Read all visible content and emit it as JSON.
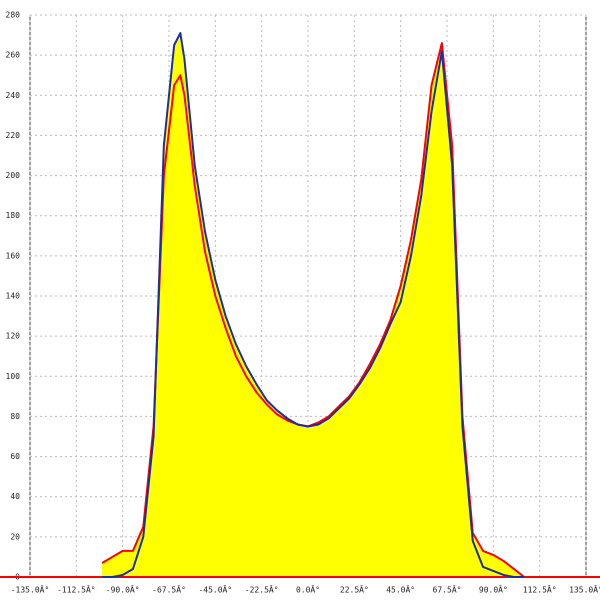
{
  "chart_data": {
    "type": "area",
    "x": [
      -100,
      -95,
      -90,
      -85,
      -80,
      -75,
      -70,
      -65,
      -62,
      -60,
      -55,
      -50,
      -45,
      -40,
      -35,
      -30,
      -25,
      -20,
      -15,
      -10,
      -5,
      0,
      5,
      10,
      15,
      20,
      25,
      30,
      35,
      40,
      45,
      50,
      55,
      60,
      65,
      70,
      75,
      80,
      85,
      90,
      95,
      100,
      105
    ],
    "series": [
      {
        "color": "#ff0000",
        "values": [
          7,
          10,
          13,
          13,
          25,
          75,
          200,
          245,
          250,
          240,
          195,
          162,
          140,
          124,
          110,
          100,
          92,
          86,
          81,
          78,
          76,
          75,
          77,
          80,
          85,
          90,
          97,
          106,
          116,
          128,
          145,
          168,
          198,
          245,
          266,
          215,
          80,
          22,
          13,
          11,
          8,
          4,
          0
        ]
      },
      {
        "color": "#1a2fa0",
        "values": [
          0,
          0,
          1,
          4,
          20,
          70,
          215,
          265,
          271,
          258,
          205,
          172,
          148,
          130,
          116,
          105,
          96,
          88,
          83,
          79,
          76,
          75,
          76,
          79,
          84,
          89,
          96,
          104,
          114,
          126,
          137,
          160,
          190,
          232,
          262,
          205,
          75,
          18,
          5,
          3,
          1,
          0,
          0
        ]
      }
    ],
    "fill": "#ffff00",
    "xlim": [
      -135,
      135
    ],
    "xticks": [
      {
        "value": -135,
        "label": "-135.0Â°"
      },
      {
        "value": -112.5,
        "label": "-112.5Â°"
      },
      {
        "value": -90,
        "label": "-90.0Â°"
      },
      {
        "value": -67.5,
        "label": "-67.5Â°"
      },
      {
        "value": -45,
        "label": "-45.0Â°"
      },
      {
        "value": -22.5,
        "label": "-22.5Â°"
      },
      {
        "value": 0,
        "label": "0.0Â°"
      },
      {
        "value": 22.5,
        "label": "22.5Â°"
      },
      {
        "value": 45,
        "label": "45.0Â°"
      },
      {
        "value": 67.5,
        "label": "67.5Â°"
      },
      {
        "value": 90,
        "label": "90.0Â°"
      },
      {
        "value": 112.5,
        "label": "112.5Â°"
      },
      {
        "value": 135,
        "label": "135.0Â°"
      }
    ],
    "ylim": [
      0,
      280
    ],
    "yticks": [
      0,
      20,
      40,
      60,
      80,
      100,
      120,
      140,
      160,
      180,
      200,
      220,
      240,
      260,
      280
    ],
    "grid": true
  }
}
